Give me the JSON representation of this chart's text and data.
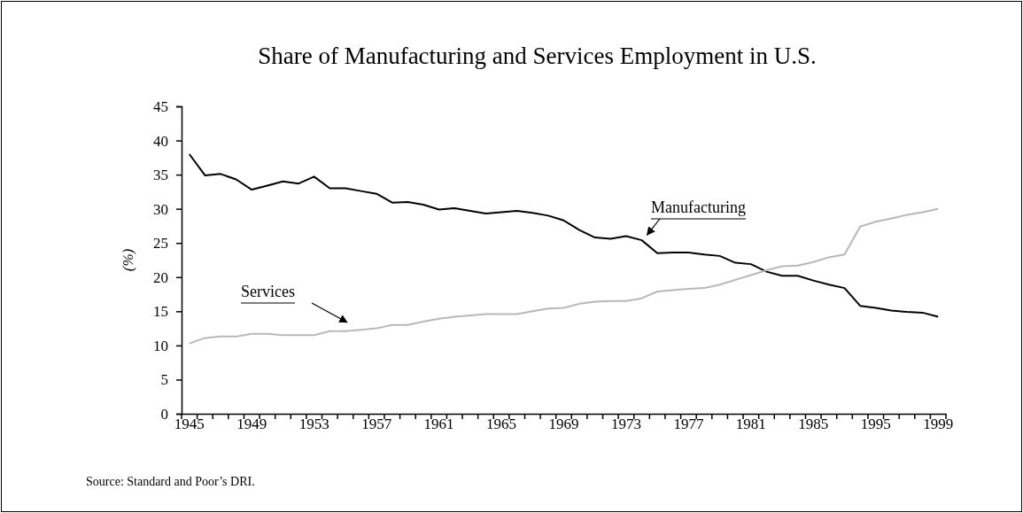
{
  "chart_data": {
    "type": "line",
    "title": "Share of Manufacturing and Services Employment in U.S.",
    "ylabel": "(%)",
    "categories": [
      "1945",
      null,
      null,
      null,
      "1949",
      null,
      null,
      null,
      "1953",
      null,
      null,
      null,
      "1957",
      null,
      null,
      null,
      "1961",
      null,
      null,
      null,
      "1965",
      null,
      null,
      null,
      "1969",
      null,
      null,
      null,
      "1973",
      null,
      null,
      null,
      "1977",
      null,
      null,
      null,
      "1981",
      null,
      null,
      null,
      "1985",
      null,
      null,
      null,
      "1995",
      null,
      null,
      null,
      "1999"
    ],
    "series": [
      {
        "name": "Manufacturing",
        "color": "#000000",
        "values": [
          38.0,
          34.9,
          35.1,
          34.3,
          32.8,
          33.4,
          34.0,
          33.7,
          34.7,
          33.0,
          33.0,
          32.6,
          32.2,
          30.9,
          31.0,
          30.6,
          29.9,
          30.1,
          29.7,
          29.3,
          29.5,
          29.7,
          29.4,
          29.0,
          28.3,
          26.9,
          25.8,
          25.6,
          26.0,
          25.4,
          23.5,
          23.6,
          23.6,
          23.3,
          23.1,
          22.1,
          21.9,
          20.8,
          20.2,
          20.2,
          19.5,
          18.9,
          18.4,
          15.8,
          15.5,
          15.1,
          14.9,
          14.8,
          14.2
        ]
      },
      {
        "name": "Services",
        "color": "#b8b8b8",
        "values": [
          10.3,
          11.1,
          11.3,
          11.3,
          11.7,
          11.7,
          11.5,
          11.5,
          11.5,
          12.1,
          12.1,
          12.3,
          12.5,
          13.0,
          13.0,
          13.5,
          13.9,
          14.2,
          14.4,
          14.6,
          14.6,
          14.6,
          15.0,
          15.4,
          15.5,
          16.1,
          16.4,
          16.5,
          16.5,
          16.9,
          17.9,
          18.1,
          18.3,
          18.4,
          18.9,
          19.6,
          20.3,
          21.0,
          21.6,
          21.7,
          22.2,
          22.9,
          23.3,
          27.4,
          28.1,
          28.6,
          29.1,
          29.5,
          30.0
        ]
      }
    ],
    "ylim": [
      0,
      45
    ],
    "yticks": [
      0,
      5,
      10,
      15,
      20,
      25,
      30,
      35,
      40,
      45
    ],
    "grid": false,
    "legend": false,
    "marker": "none",
    "line_style": "solid",
    "annotations": [
      "Source:  Standard and Poor’s DRI."
    ]
  }
}
